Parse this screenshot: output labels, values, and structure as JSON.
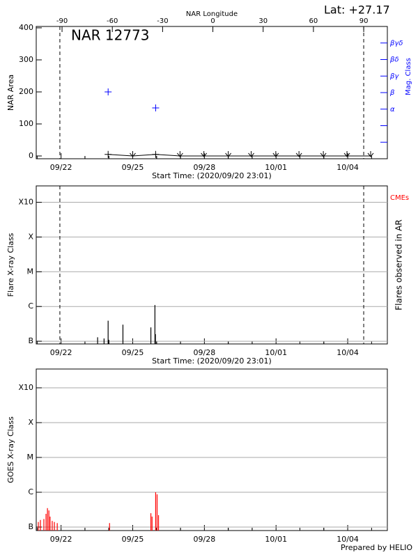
{
  "chart_data": [
    {
      "type": "scatter",
      "title": "NAR 12773",
      "annotation": "Lat: +27.17",
      "ylabel": "NAR Area",
      "y2label": "Mag. Class",
      "y2color": "#0000ff",
      "mag_classes": [
        "βγδ",
        "βδ",
        "βγ",
        "β",
        "α",
        null,
        null
      ],
      "x2label": "NAR Longitude",
      "x2lim": [
        -105.4,
        104.1
      ],
      "x2ticks": [
        -90,
        -60,
        -30,
        0,
        30,
        60,
        90
      ],
      "xlabel": "Start Time: (2020/09/20 23:01)",
      "xlim": [
        0,
        14.7
      ],
      "xticks": [
        {
          "value": 1.04,
          "label": "09/22"
        },
        {
          "value": 4.04,
          "label": "09/25"
        },
        {
          "value": 7.04,
          "label": "09/28"
        },
        {
          "value": 10.04,
          "label": "10/01"
        },
        {
          "value": 13.04,
          "label": "10/04"
        }
      ],
      "ylim": [
        -8.7,
        404.3
      ],
      "yticks": [
        0,
        100,
        200,
        300,
        400
      ],
      "vlines": [
        0.99,
        13.71
      ],
      "series": [
        {
          "color": "#0000ff",
          "marker": "+",
          "x": [
            3.01,
            5.0
          ],
          "values": [
            200,
            150
          ]
        },
        {
          "color": "#000000",
          "line": true,
          "x": [
            3.01,
            4.04,
            5.0,
            6.02,
            7.02,
            8.04,
            9.0,
            10.03,
            11.0,
            12.02,
            13.01,
            14.0
          ],
          "values": [
            5,
            0,
            5,
            0,
            0,
            0,
            0,
            0,
            0,
            0,
            0,
            0
          ],
          "markers": [
            "+",
            "v",
            "+",
            "v",
            "v",
            "v",
            "v",
            "v",
            "v",
            "v",
            "v",
            "v"
          ]
        }
      ]
    },
    {
      "type": "bar",
      "ylabel": "Flare X-ray Class",
      "y2label": "Flares observed in AR",
      "annotation": "CMEs",
      "annotation_color": "#ff0000",
      "xlabel": "Start Time: (2020/09/20 23:01)",
      "xlim": [
        0,
        14.7
      ],
      "xticks": [
        {
          "value": 1.04,
          "label": "09/22"
        },
        {
          "value": 4.04,
          "label": "09/25"
        },
        {
          "value": 7.04,
          "label": "09/28"
        },
        {
          "value": 10.04,
          "label": "10/01"
        },
        {
          "value": 13.04,
          "label": "10/04"
        }
      ],
      "log_y": true,
      "ylim": [
        8.35e-08,
        0.00296
      ],
      "yticks": [
        {
          "value": 1e-07,
          "label": "B"
        },
        {
          "value": 1e-06,
          "label": "C"
        },
        {
          "value": 1e-05,
          "label": "M"
        },
        {
          "value": 0.0001,
          "label": "X"
        },
        {
          "value": 0.001,
          "label": "X10"
        }
      ],
      "grid": true,
      "vlines": [
        0.99,
        13.71
      ],
      "color": "#000000",
      "x": [
        2.57,
        2.84,
        3.01,
        3.04,
        3.63,
        4.8,
        4.97,
        4.99
      ],
      "values": [
        1.3e-07,
        1.2e-07,
        3.9e-07,
        1.1e-07,
        3e-07,
        2.5e-07,
        1.1e-06,
        1.6e-07
      ]
    },
    {
      "type": "bar",
      "ylabel": "GOES X-ray Class",
      "xlim": [
        0,
        14.7
      ],
      "xticks": [
        {
          "value": 1.04,
          "label": "09/22"
        },
        {
          "value": 4.04,
          "label": "09/25"
        },
        {
          "value": 7.04,
          "label": "09/28"
        },
        {
          "value": 10.04,
          "label": "10/01"
        },
        {
          "value": 13.04,
          "label": "10/04"
        }
      ],
      "log_y": true,
      "ylim": [
        7.94e-08,
        0.00347
      ],
      "yticks": [
        {
          "value": 1e-07,
          "label": "B"
        },
        {
          "value": 1e-06,
          "label": "C"
        },
        {
          "value": 1e-05,
          "label": "M"
        },
        {
          "value": 0.0001,
          "label": "X"
        },
        {
          "value": 0.001,
          "label": "X10"
        }
      ],
      "grid": true,
      "color": "#ff0000",
      "x": [
        0.088,
        0.175,
        0.32,
        0.41,
        0.47,
        0.53,
        0.58,
        0.67,
        0.76,
        0.88,
        3.07,
        4.8,
        4.85,
        5.0,
        5.06,
        5.12
      ],
      "values": [
        1.4e-07,
        1.6e-07,
        1.7e-07,
        2.4e-07,
        3.5e-07,
        3e-07,
        2e-07,
        1.5e-07,
        1.4e-07,
        1.3e-07,
        1.3e-07,
        2.5e-07,
        2e-07,
        1e-06,
        8.7e-07,
        2.2e-07
      ]
    }
  ],
  "footer": "Prepared by HELIO"
}
